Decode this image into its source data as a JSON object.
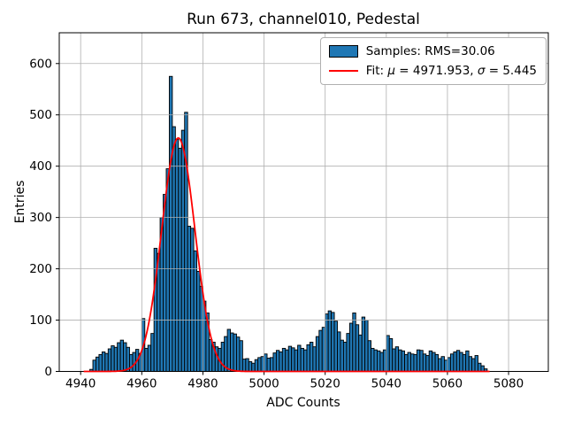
{
  "chart_data": {
    "type": "bar",
    "title": "Run 673, channel010, Pedestal",
    "xlabel": "ADC Counts",
    "ylabel": "Entries",
    "xlim": [
      4933,
      5093
    ],
    "ylim": [
      0,
      660
    ],
    "xticks": [
      4940,
      4960,
      4980,
      5000,
      5020,
      5040,
      5060,
      5080
    ],
    "yticks": [
      0,
      100,
      200,
      300,
      400,
      500,
      600
    ],
    "grid": true,
    "legend_position": "upper right",
    "bin_width": 1,
    "bin_start": 4943,
    "counts": [
      4,
      22,
      28,
      33,
      38,
      35,
      44,
      50,
      47,
      56,
      61,
      56,
      47,
      33,
      37,
      43,
      35,
      103,
      45,
      51,
      74,
      240,
      230,
      300,
      345,
      395,
      575,
      477,
      452,
      435,
      470,
      505,
      283,
      279,
      235,
      195,
      166,
      137,
      114,
      62,
      57,
      48,
      45,
      57,
      68,
      82,
      75,
      73,
      67,
      60,
      24,
      25,
      19,
      16,
      23,
      27,
      29,
      34,
      26,
      27,
      36,
      41,
      38,
      45,
      42,
      49,
      46,
      42,
      51,
      45,
      42,
      52,
      57,
      48,
      68,
      80,
      86,
      112,
      118,
      115,
      98,
      77,
      61,
      57,
      74,
      94,
      114,
      91,
      71,
      106,
      100,
      60,
      45,
      42,
      40,
      37,
      42,
      70,
      64,
      44,
      48,
      42,
      40,
      33,
      37,
      34,
      33,
      42,
      41,
      34,
      31,
      40,
      37,
      33,
      25,
      29,
      22,
      27,
      34,
      38,
      41,
      37,
      33,
      40,
      29,
      25,
      31,
      16,
      11,
      5
    ],
    "samples_rms": 30.06,
    "fit": {
      "mu": 4971.953,
      "sigma": 5.445,
      "amplitude": 455,
      "x_range": [
        4941,
        5074
      ]
    },
    "legend": {
      "samples_label": "Samples: RMS=30.06",
      "fit_prefix": "Fit: ",
      "mu_symbol": "μ",
      "mu_text": " = 4971.953, ",
      "sigma_symbol": "σ",
      "sigma_text": " = 5.445"
    },
    "colors": {
      "bar_fill": "#1f77b4",
      "bar_edge": "#000000",
      "fit_line": "#ff0000",
      "grid": "#b0b0b0",
      "spine": "#000000",
      "background": "#ffffff"
    }
  }
}
